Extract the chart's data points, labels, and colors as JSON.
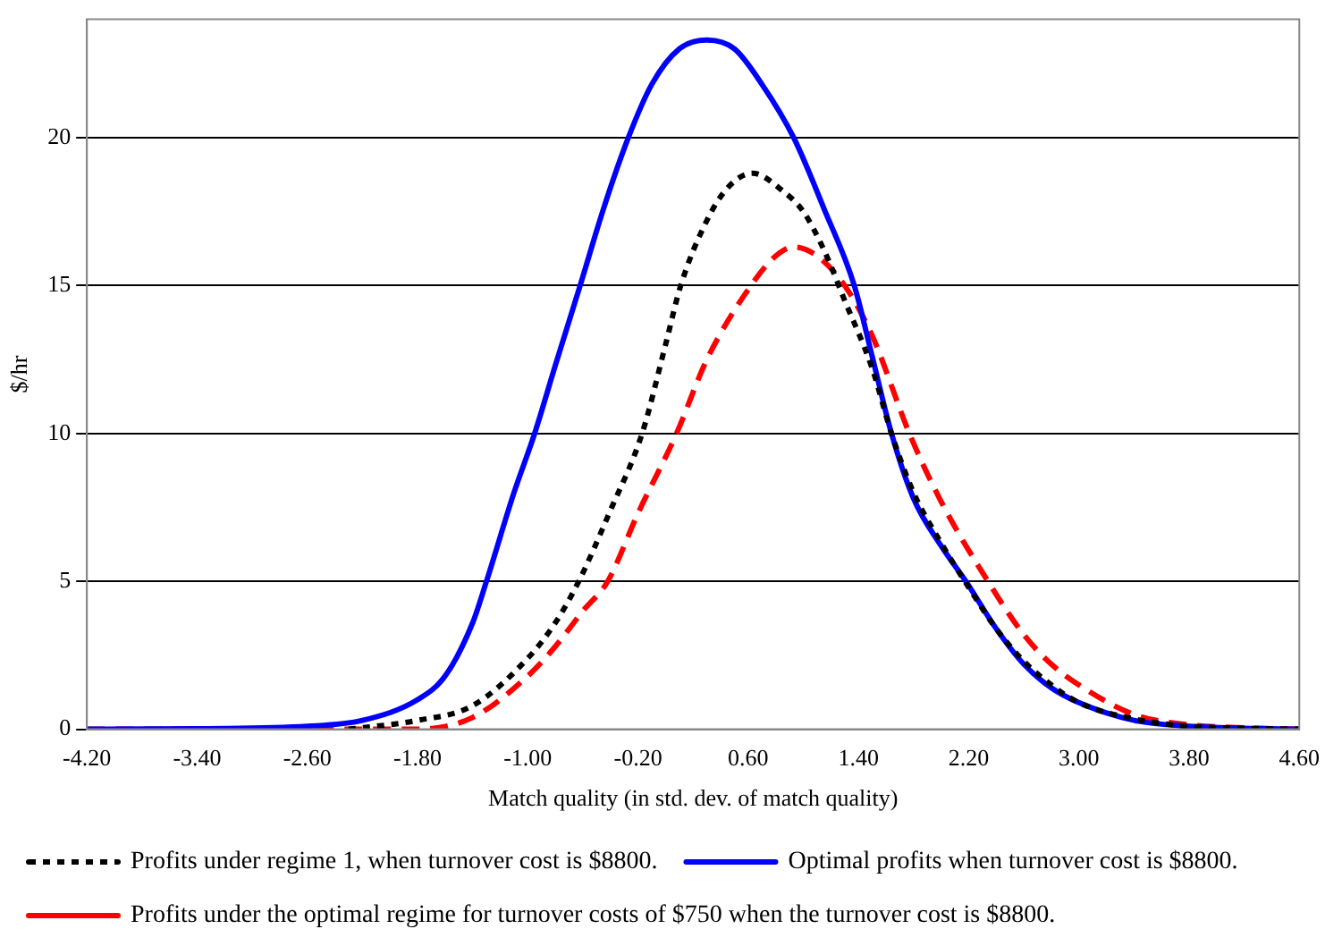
{
  "chart_data": {
    "type": "line",
    "xlabel": "Match quality (in std. dev. of match quality)",
    "ylabel": "$/hr",
    "xlim": [
      -4.2,
      4.6
    ],
    "xticks": [
      {
        "value": -4.2,
        "label": "-4.20"
      },
      {
        "value": -3.4,
        "label": "-3.40"
      },
      {
        "value": -2.6,
        "label": "-2.60"
      },
      {
        "value": -1.8,
        "label": "-1.80"
      },
      {
        "value": -1.0,
        "label": "-1.00"
      },
      {
        "value": -0.2,
        "label": "-0.20"
      },
      {
        "value": 0.6,
        "label": "0.60"
      },
      {
        "value": 1.4,
        "label": "1.40"
      },
      {
        "value": 2.2,
        "label": "2.20"
      },
      {
        "value": 3.0,
        "label": "3.00"
      },
      {
        "value": 3.8,
        "label": "3.80"
      },
      {
        "value": 4.6,
        "label": "4.60"
      }
    ],
    "ylim": [
      0,
      24
    ],
    "yticks": [
      0,
      5,
      10,
      15,
      20
    ],
    "grid": "y",
    "legend": "bottom",
    "marker": "none",
    "series": [
      {
        "name": "Profits under regime 1, when turnover cost is $8800.",
        "color": "#000000",
        "line_style": "dotted",
        "x": [
          -2.3,
          -1.8,
          -1.4,
          -1.0,
          -0.8,
          -0.63,
          -0.4,
          -0.17,
          0.0,
          0.11,
          0.3,
          0.45,
          0.63,
          0.85,
          1.0,
          1.15,
          1.3,
          1.5,
          1.64,
          1.8,
          2.0,
          2.2,
          2.4,
          2.6,
          2.8,
          3.0,
          3.4,
          3.8,
          4.2,
          4.6
        ],
        "values": [
          0,
          0.3,
          0.8,
          2.4,
          3.6,
          5,
          7.4,
          10,
          13,
          15,
          17.2,
          18.3,
          18.8,
          18.2,
          17.5,
          16.2,
          14.5,
          12.2,
          10,
          8,
          6.3,
          4.8,
          3.4,
          2.3,
          1.5,
          0.9,
          0.35,
          0.1,
          0.03,
          0
        ]
      },
      {
        "name": "Optimal profits when turnover cost is $8800.",
        "color": "#0000ff",
        "line_style": "solid",
        "x": [
          -4.2,
          -3.4,
          -2.6,
          -2.2,
          -1.8,
          -1.6,
          -1.4,
          -1.3,
          -1.1,
          -0.95,
          -0.8,
          -0.62,
          -0.45,
          -0.27,
          -0.1,
          0.1,
          0.3,
          0.5,
          0.7,
          0.93,
          1.15,
          1.37,
          1.5,
          1.64,
          1.8,
          2.0,
          2.18,
          2.4,
          2.6,
          2.8,
          3.0,
          3.4,
          3.8,
          4.2,
          4.6
        ],
        "values": [
          0,
          0.02,
          0.1,
          0.3,
          1.0,
          1.8,
          3.6,
          5,
          8,
          10,
          12.3,
          15,
          17.6,
          20,
          21.8,
          23.0,
          23.3,
          23.0,
          21.8,
          20,
          17.6,
          15,
          12.6,
          10,
          7.8,
          6.2,
          5,
          3.4,
          2.2,
          1.4,
          0.9,
          0.3,
          0.1,
          0.03,
          0
        ]
      },
      {
        "name": "Profits under the optimal regime for turnover costs of $750 when the turnover cost is $8800.",
        "color": "#ff0000",
        "line_style": "dashed",
        "x": [
          -4.2,
          -1.8,
          -1.4,
          -1.0,
          -0.8,
          -0.6,
          -0.42,
          -0.2,
          0.08,
          0.3,
          0.62,
          0.8,
          0.93,
          1.1,
          1.3,
          1.5,
          1.77,
          2.0,
          2.34,
          2.6,
          2.8,
          3.0,
          3.4,
          3.8,
          4.2,
          4.6
        ],
        "values": [
          0,
          0,
          0.4,
          1.8,
          2.8,
          4.0,
          5,
          7.3,
          10,
          12.5,
          15,
          16.0,
          16.3,
          16.0,
          15,
          13.3,
          10,
          7.7,
          5,
          3.2,
          2.2,
          1.5,
          0.5,
          0.15,
          0.05,
          0
        ]
      }
    ]
  }
}
